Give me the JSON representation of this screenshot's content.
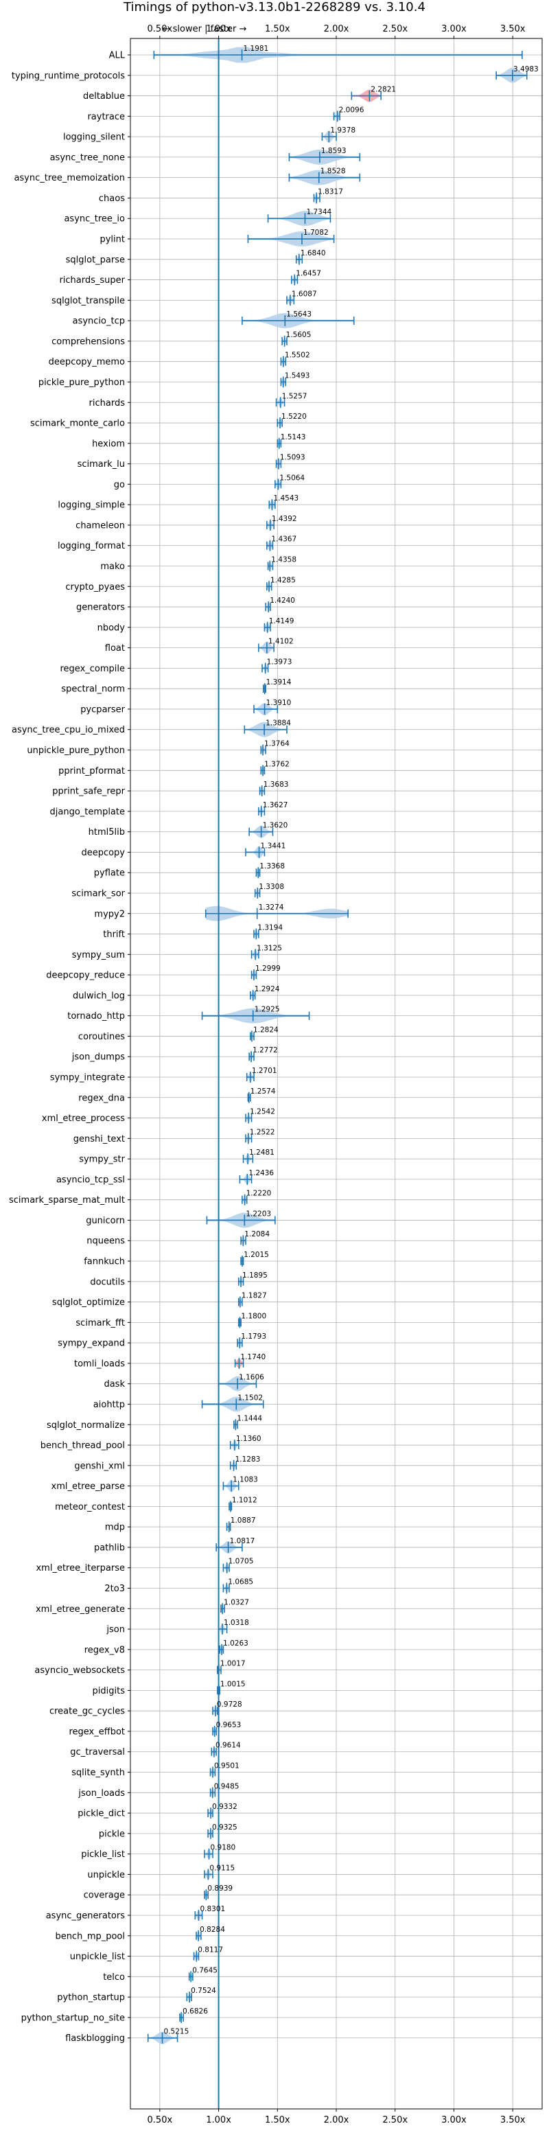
{
  "chart_data": {
    "type": "violin",
    "title": "Timings of python-v3.13.0b1-2268289 vs. 3.10.4",
    "direction_hint": "← slower | faster →",
    "xlabel": "",
    "ylabel": "",
    "xlim": [
      0.25,
      3.75
    ],
    "xticks": [
      0.5,
      1.0,
      1.5,
      2.0,
      2.5,
      3.0,
      3.5
    ],
    "xtick_labels": [
      "0.50x",
      "1.00x",
      "1.50x",
      "2.00x",
      "2.50x",
      "3.00x",
      "3.50x"
    ],
    "reference_line": 1.0,
    "grid": true,
    "colors": {
      "violin": "#b6d2e9",
      "accent": "#1f77b4",
      "highlight": "#f4a6a6",
      "grid": "#b0b0b0"
    },
    "benchmarks": [
      {
        "name": "ALL",
        "value": 1.1981,
        "label": "1.1981",
        "min": 0.45,
        "max": 3.58,
        "spread": 0.3,
        "kind": "all"
      },
      {
        "name": "typing_runtime_protocols",
        "value": 3.4983,
        "label": "3.4983",
        "min": 3.36,
        "max": 3.62,
        "spread": 0.12
      },
      {
        "name": "deltablue",
        "value": 2.2821,
        "label": "2.2821",
        "min": 2.13,
        "max": 2.38,
        "spread": 0.1,
        "highlight": true
      },
      {
        "name": "raytrace",
        "value": 2.0096,
        "label": "2.0096",
        "min": 1.98,
        "max": 2.03,
        "spread": 0.03
      },
      {
        "name": "logging_silent",
        "value": 1.9378,
        "label": "1.9378",
        "min": 1.88,
        "max": 2.0,
        "spread": 0.05
      },
      {
        "name": "async_tree_none",
        "value": 1.8593,
        "label": "1.8593",
        "min": 1.6,
        "max": 2.2,
        "spread": 0.25
      },
      {
        "name": "async_tree_memoization",
        "value": 1.8528,
        "label": "1.8528",
        "min": 1.6,
        "max": 2.2,
        "spread": 0.25
      },
      {
        "name": "chaos",
        "value": 1.8317,
        "label": "1.8317",
        "min": 1.81,
        "max": 1.86,
        "spread": 0.02
      },
      {
        "name": "async_tree_io",
        "value": 1.7344,
        "label": "1.7344",
        "min": 1.42,
        "max": 1.95,
        "spread": 0.22
      },
      {
        "name": "pylint",
        "value": 1.7082,
        "label": "1.7082",
        "min": 1.25,
        "max": 1.98,
        "spread": 0.28
      },
      {
        "name": "sqlglot_parse",
        "value": 1.684,
        "label": "1.6840",
        "min": 1.66,
        "max": 1.71,
        "spread": 0.02
      },
      {
        "name": "richards_super",
        "value": 1.6457,
        "label": "1.6457",
        "min": 1.62,
        "max": 1.67,
        "spread": 0.02
      },
      {
        "name": "sqlglot_transpile",
        "value": 1.6087,
        "label": "1.6087",
        "min": 1.58,
        "max": 1.64,
        "spread": 0.03
      },
      {
        "name": "asyncio_tcp",
        "value": 1.5643,
        "label": "1.5643",
        "min": 1.2,
        "max": 2.15,
        "spread": 0.25
      },
      {
        "name": "comprehensions",
        "value": 1.5605,
        "label": "1.5605",
        "min": 1.54,
        "max": 1.58,
        "spread": 0.02
      },
      {
        "name": "deepcopy_memo",
        "value": 1.5502,
        "label": "1.5502",
        "min": 1.53,
        "max": 1.57,
        "spread": 0.02
      },
      {
        "name": "pickle_pure_python",
        "value": 1.5493,
        "label": "1.5493",
        "min": 1.53,
        "max": 1.57,
        "spread": 0.02
      },
      {
        "name": "richards",
        "value": 1.5257,
        "label": "1.5257",
        "min": 1.49,
        "max": 1.56,
        "spread": 0.03
      },
      {
        "name": "scimark_monte_carlo",
        "value": 1.522,
        "label": "1.5220",
        "min": 1.5,
        "max": 1.54,
        "spread": 0.02
      },
      {
        "name": "hexiom",
        "value": 1.5143,
        "label": "1.5143",
        "min": 1.5,
        "max": 1.53,
        "spread": 0.02
      },
      {
        "name": "scimark_lu",
        "value": 1.5093,
        "label": "1.5093",
        "min": 1.49,
        "max": 1.53,
        "spread": 0.02
      },
      {
        "name": "go",
        "value": 1.5064,
        "label": "1.5064",
        "min": 1.48,
        "max": 1.53,
        "spread": 0.03
      },
      {
        "name": "logging_simple",
        "value": 1.4543,
        "label": "1.4543",
        "min": 1.43,
        "max": 1.48,
        "spread": 0.03
      },
      {
        "name": "chameleon",
        "value": 1.4392,
        "label": "1.4392",
        "min": 1.41,
        "max": 1.47,
        "spread": 0.03
      },
      {
        "name": "logging_format",
        "value": 1.4367,
        "label": "1.4367",
        "min": 1.41,
        "max": 1.46,
        "spread": 0.03
      },
      {
        "name": "mako",
        "value": 1.4358,
        "label": "1.4358",
        "min": 1.42,
        "max": 1.46,
        "spread": 0.02
      },
      {
        "name": "crypto_pyaes",
        "value": 1.4285,
        "label": "1.4285",
        "min": 1.41,
        "max": 1.45,
        "spread": 0.02
      },
      {
        "name": "generators",
        "value": 1.424,
        "label": "1.4240",
        "min": 1.4,
        "max": 1.44,
        "spread": 0.02
      },
      {
        "name": "nbody",
        "value": 1.4149,
        "label": "1.4149",
        "min": 1.39,
        "max": 1.44,
        "spread": 0.03
      },
      {
        "name": "float",
        "value": 1.4102,
        "label": "1.4102",
        "min": 1.34,
        "max": 1.47,
        "spread": 0.06
      },
      {
        "name": "regex_compile",
        "value": 1.3973,
        "label": "1.3973",
        "min": 1.37,
        "max": 1.42,
        "spread": 0.02
      },
      {
        "name": "spectral_norm",
        "value": 1.3914,
        "label": "1.3914",
        "min": 1.38,
        "max": 1.4,
        "spread": 0.01
      },
      {
        "name": "pycparser",
        "value": 1.391,
        "label": "1.3910",
        "min": 1.3,
        "max": 1.5,
        "spread": 0.08
      },
      {
        "name": "async_tree_cpu_io_mixed",
        "value": 1.3884,
        "label": "1.3884",
        "min": 1.22,
        "max": 1.58,
        "spread": 0.15
      },
      {
        "name": "unpickle_pure_python",
        "value": 1.3764,
        "label": "1.3764",
        "min": 1.36,
        "max": 1.4,
        "spread": 0.02
      },
      {
        "name": "pprint_pformat",
        "value": 1.3762,
        "label": "1.3762",
        "min": 1.36,
        "max": 1.39,
        "spread": 0.02
      },
      {
        "name": "pprint_safe_repr",
        "value": 1.3683,
        "label": "1.3683",
        "min": 1.35,
        "max": 1.39,
        "spread": 0.02
      },
      {
        "name": "django_template",
        "value": 1.3627,
        "label": "1.3627",
        "min": 1.34,
        "max": 1.39,
        "spread": 0.02
      },
      {
        "name": "html5lib",
        "value": 1.362,
        "label": "1.3620",
        "min": 1.26,
        "max": 1.46,
        "spread": 0.08
      },
      {
        "name": "deepcopy",
        "value": 1.3441,
        "label": "1.3441",
        "min": 1.23,
        "max": 1.39,
        "spread": 0.05
      },
      {
        "name": "pyflate",
        "value": 1.3368,
        "label": "1.3368",
        "min": 1.32,
        "max": 1.35,
        "spread": 0.02
      },
      {
        "name": "scimark_sor",
        "value": 1.3308,
        "label": "1.3308",
        "min": 1.31,
        "max": 1.35,
        "spread": 0.02
      },
      {
        "name": "mypy2",
        "value": 1.3274,
        "label": "1.3274",
        "min": 0.89,
        "max": 2.1,
        "spread": 0.3,
        "bimodal": [
          0.98,
          1.95
        ]
      },
      {
        "name": "thrift",
        "value": 1.3194,
        "label": "1.3194",
        "min": 1.3,
        "max": 1.34,
        "spread": 0.02
      },
      {
        "name": "sympy_sum",
        "value": 1.3125,
        "label": "1.3125",
        "min": 1.28,
        "max": 1.34,
        "spread": 0.03
      },
      {
        "name": "deepcopy_reduce",
        "value": 1.2999,
        "label": "1.2999",
        "min": 1.28,
        "max": 1.32,
        "spread": 0.02
      },
      {
        "name": "dulwich_log",
        "value": 1.2924,
        "label": "1.2924",
        "min": 1.27,
        "max": 1.31,
        "spread": 0.02
      },
      {
        "name": "tornado_http",
        "value": 1.2925,
        "label": "1.2925",
        "min": 0.86,
        "max": 1.77,
        "spread": 0.3
      },
      {
        "name": "coroutines",
        "value": 1.2824,
        "label": "1.2824",
        "min": 1.27,
        "max": 1.3,
        "spread": 0.01
      },
      {
        "name": "json_dumps",
        "value": 1.2772,
        "label": "1.2772",
        "min": 1.26,
        "max": 1.3,
        "spread": 0.02
      },
      {
        "name": "sympy_integrate",
        "value": 1.2701,
        "label": "1.2701",
        "min": 1.24,
        "max": 1.3,
        "spread": 0.03
      },
      {
        "name": "regex_dna",
        "value": 1.2574,
        "label": "1.2574",
        "min": 1.25,
        "max": 1.27,
        "spread": 0.01
      },
      {
        "name": "xml_etree_process",
        "value": 1.2542,
        "label": "1.2542",
        "min": 1.23,
        "max": 1.28,
        "spread": 0.02
      },
      {
        "name": "genshi_text",
        "value": 1.2522,
        "label": "1.2522",
        "min": 1.23,
        "max": 1.28,
        "spread": 0.02
      },
      {
        "name": "sympy_str",
        "value": 1.2481,
        "label": "1.2481",
        "min": 1.21,
        "max": 1.29,
        "spread": 0.03
      },
      {
        "name": "asyncio_tcp_ssl",
        "value": 1.2436,
        "label": "1.2436",
        "min": 1.18,
        "max": 1.28,
        "spread": 0.04
      },
      {
        "name": "scimark_sparse_mat_mult",
        "value": 1.222,
        "label": "1.2220",
        "min": 1.2,
        "max": 1.24,
        "spread": 0.02
      },
      {
        "name": "gunicorn",
        "value": 1.2203,
        "label": "1.2203",
        "min": 0.9,
        "max": 1.48,
        "spread": 0.2
      },
      {
        "name": "nqueens",
        "value": 1.2084,
        "label": "1.2084",
        "min": 1.19,
        "max": 1.23,
        "spread": 0.02
      },
      {
        "name": "fannkuch",
        "value": 1.2015,
        "label": "1.2015",
        "min": 1.19,
        "max": 1.21,
        "spread": 0.01
      },
      {
        "name": "docutils",
        "value": 1.1895,
        "label": "1.1895",
        "min": 1.17,
        "max": 1.21,
        "spread": 0.02
      },
      {
        "name": "sqlglot_optimize",
        "value": 1.1827,
        "label": "1.1827",
        "min": 1.17,
        "max": 1.2,
        "spread": 0.01
      },
      {
        "name": "scimark_fft",
        "value": 1.18,
        "label": "1.1800",
        "min": 1.17,
        "max": 1.19,
        "spread": 0.01
      },
      {
        "name": "sympy_expand",
        "value": 1.1793,
        "label": "1.1793",
        "min": 1.16,
        "max": 1.2,
        "spread": 0.02
      },
      {
        "name": "tomli_loads",
        "value": 1.174,
        "label": "1.1740",
        "min": 1.14,
        "max": 1.21,
        "spread": 0.04,
        "highlight": true
      },
      {
        "name": "dask",
        "value": 1.1606,
        "label": "1.1606",
        "min": 1.0,
        "max": 1.32,
        "spread": 0.12
      },
      {
        "name": "aiohttp",
        "value": 1.1502,
        "label": "1.1502",
        "min": 0.86,
        "max": 1.38,
        "spread": 0.15
      },
      {
        "name": "sqlglot_normalize",
        "value": 1.1444,
        "label": "1.1444",
        "min": 1.13,
        "max": 1.16,
        "spread": 0.01
      },
      {
        "name": "bench_thread_pool",
        "value": 1.136,
        "label": "1.1360",
        "min": 1.1,
        "max": 1.17,
        "spread": 0.03
      },
      {
        "name": "genshi_xml",
        "value": 1.1283,
        "label": "1.1283",
        "min": 1.1,
        "max": 1.15,
        "spread": 0.02
      },
      {
        "name": "xml_etree_parse",
        "value": 1.1083,
        "label": "1.1083",
        "min": 1.04,
        "max": 1.17,
        "spread": 0.05
      },
      {
        "name": "meteor_contest",
        "value": 1.1012,
        "label": "1.1012",
        "min": 1.09,
        "max": 1.11,
        "spread": 0.01
      },
      {
        "name": "mdp",
        "value": 1.0887,
        "label": "1.0887",
        "min": 1.07,
        "max": 1.1,
        "spread": 0.01
      },
      {
        "name": "pathlib",
        "value": 1.0817,
        "label": "1.0817",
        "min": 0.98,
        "max": 1.2,
        "spread": 0.08
      },
      {
        "name": "xml_etree_iterparse",
        "value": 1.0705,
        "label": "1.0705",
        "min": 1.04,
        "max": 1.09,
        "spread": 0.02
      },
      {
        "name": "2to3",
        "value": 1.0685,
        "label": "1.0685",
        "min": 1.04,
        "max": 1.09,
        "spread": 0.02
      },
      {
        "name": "xml_etree_generate",
        "value": 1.0327,
        "label": "1.0327",
        "min": 1.02,
        "max": 1.05,
        "spread": 0.01
      },
      {
        "name": "json",
        "value": 1.0318,
        "label": "1.0318",
        "min": 1.0,
        "max": 1.07,
        "spread": 0.03
      },
      {
        "name": "regex_v8",
        "value": 1.0263,
        "label": "1.0263",
        "min": 1.01,
        "max": 1.04,
        "spread": 0.01
      },
      {
        "name": "asyncio_websockets",
        "value": 1.0017,
        "label": "1.0017",
        "min": 0.99,
        "max": 1.02,
        "spread": 0.01
      },
      {
        "name": "pidigits",
        "value": 1.0015,
        "label": "1.0015",
        "min": 0.99,
        "max": 1.01,
        "spread": 0.01
      },
      {
        "name": "create_gc_cycles",
        "value": 0.9728,
        "label": "0.9728",
        "min": 0.95,
        "max": 0.99,
        "spread": 0.02
      },
      {
        "name": "regex_effbot",
        "value": 0.9653,
        "label": "0.9653",
        "min": 0.95,
        "max": 0.98,
        "spread": 0.01
      },
      {
        "name": "gc_traversal",
        "value": 0.9614,
        "label": "0.9614",
        "min": 0.94,
        "max": 0.98,
        "spread": 0.02
      },
      {
        "name": "sqlite_synth",
        "value": 0.9501,
        "label": "0.9501",
        "min": 0.93,
        "max": 0.97,
        "spread": 0.02
      },
      {
        "name": "json_loads",
        "value": 0.9485,
        "label": "0.9485",
        "min": 0.93,
        "max": 0.97,
        "spread": 0.02
      },
      {
        "name": "pickle_dict",
        "value": 0.9332,
        "label": "0.9332",
        "min": 0.91,
        "max": 0.95,
        "spread": 0.02
      },
      {
        "name": "pickle",
        "value": 0.9325,
        "label": "0.9325",
        "min": 0.91,
        "max": 0.95,
        "spread": 0.02
      },
      {
        "name": "pickle_list",
        "value": 0.918,
        "label": "0.9180",
        "min": 0.88,
        "max": 0.95,
        "spread": 0.03
      },
      {
        "name": "unpickle",
        "value": 0.9115,
        "label": "0.9115",
        "min": 0.88,
        "max": 0.95,
        "spread": 0.03
      },
      {
        "name": "coverage",
        "value": 0.8939,
        "label": "0.8939",
        "min": 0.88,
        "max": 0.91,
        "spread": 0.01
      },
      {
        "name": "async_generators",
        "value": 0.8301,
        "label": "0.8301",
        "min": 0.8,
        "max": 0.86,
        "spread": 0.03
      },
      {
        "name": "bench_mp_pool",
        "value": 0.8284,
        "label": "0.8284",
        "min": 0.81,
        "max": 0.85,
        "spread": 0.02
      },
      {
        "name": "unpickle_list",
        "value": 0.8117,
        "label": "0.8117",
        "min": 0.79,
        "max": 0.83,
        "spread": 0.02
      },
      {
        "name": "telco",
        "value": 0.7645,
        "label": "0.7645",
        "min": 0.75,
        "max": 0.78,
        "spread": 0.01
      },
      {
        "name": "python_startup",
        "value": 0.7524,
        "label": "0.7524",
        "min": 0.73,
        "max": 0.77,
        "spread": 0.02
      },
      {
        "name": "python_startup_no_site",
        "value": 0.6826,
        "label": "0.6826",
        "min": 0.67,
        "max": 0.7,
        "spread": 0.01
      },
      {
        "name": "flaskblogging",
        "value": 0.5215,
        "label": "0.5215",
        "min": 0.4,
        "max": 0.65,
        "spread": 0.1
      }
    ]
  }
}
